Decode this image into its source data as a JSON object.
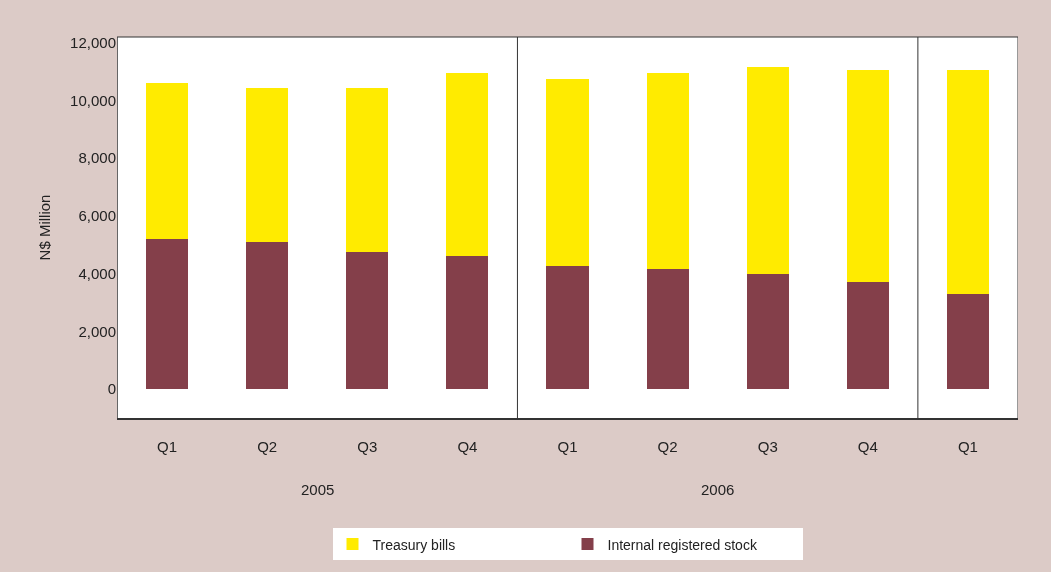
{
  "chart_data": {
    "type": "bar",
    "stacked": true,
    "ylabel": "N$ Million",
    "categories": [
      "Q1",
      "Q2",
      "Q3",
      "Q4",
      "Q1",
      "Q2",
      "Q3",
      "Q4",
      "Q1"
    ],
    "series": [
      {
        "name": "Internal registered stock",
        "color": "#843f4a",
        "values": [
          5200,
          5100,
          4750,
          4600,
          4250,
          4150,
          4000,
          3700,
          3300
        ]
      },
      {
        "name": "Treasury bills",
        "color": "#ffeb00",
        "values": [
          5400,
          5350,
          5700,
          6350,
          6500,
          6800,
          7150,
          7350,
          7750
        ]
      }
    ],
    "annotations": [
      "2005",
      "2006"
    ],
    "ylim": [
      -1000,
      12200
    ],
    "yticks": [
      0,
      {
        "value": 2000,
        "label": "2,000"
      },
      {
        "value": 4000,
        "label": "4,000"
      },
      {
        "value": 6000,
        "label": "6,000"
      },
      {
        "value": 8000,
        "label": "8,000"
      },
      {
        "value": 10000,
        "label": "10,000"
      },
      {
        "value": 12000,
        "label": "12,000"
      }
    ],
    "legend": "bottom"
  }
}
